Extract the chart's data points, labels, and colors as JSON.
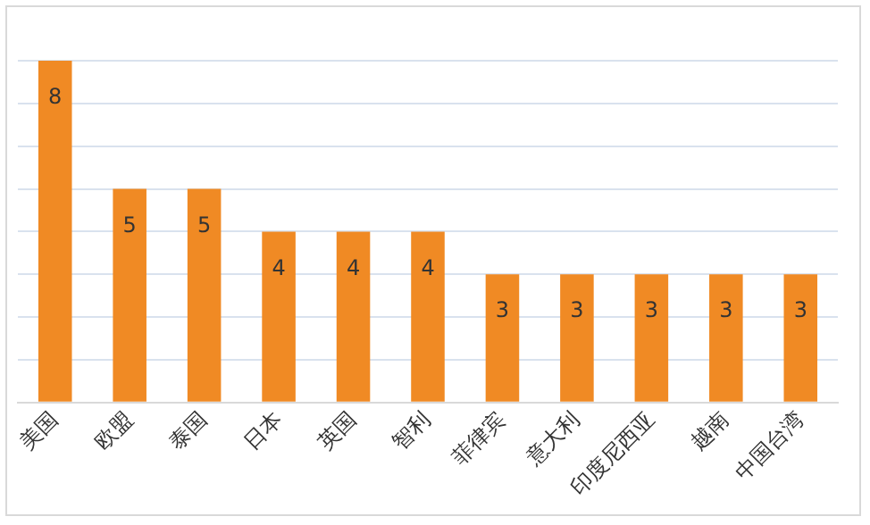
{
  "chart_data": {
    "type": "bar",
    "categories": [
      "美国",
      "欧盟",
      "泰国",
      "日本",
      "英国",
      "智利",
      "菲律宾",
      "意大利",
      "印度尼西亚",
      "越南",
      "中国台湾"
    ],
    "values": [
      8,
      5,
      5,
      4,
      4,
      4,
      3,
      3,
      3,
      3,
      3
    ],
    "color": "#f08a24",
    "ylim": [
      0,
      8
    ],
    "yticks": [
      {
        "value": 0,
        "label": null
      },
      {
        "value": 1,
        "label": null
      },
      {
        "value": 2,
        "label": null
      },
      {
        "value": 3,
        "label": null
      },
      {
        "value": 4,
        "label": null
      },
      {
        "value": 5,
        "label": null
      },
      {
        "value": 6,
        "label": null
      },
      {
        "value": 7,
        "label": null
      },
      {
        "value": 8,
        "label": null
      }
    ],
    "grid": "y",
    "tick_labels": "x",
    "data_labels": true,
    "legend": false
  }
}
